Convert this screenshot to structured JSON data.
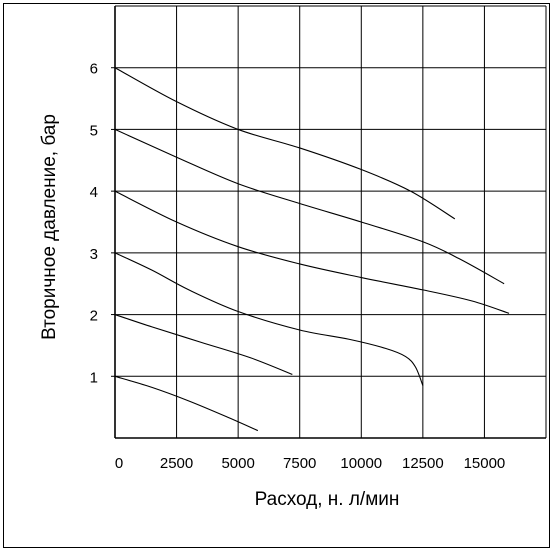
{
  "chart_data": {
    "type": "line",
    "title": "",
    "xlabel": "Расход, н. л/мин",
    "ylabel": "Вторичное давление, бар",
    "xlim": [
      0,
      17500
    ],
    "ylim": [
      0,
      7
    ],
    "x_ticks": [
      "0",
      "2500",
      "5000",
      "7500",
      "10000",
      "12500",
      "15000"
    ],
    "y_ticks": [
      "1",
      "2",
      "3",
      "4",
      "5",
      "6"
    ],
    "grid": true,
    "legend": "none",
    "colors": {
      "line": "#000000",
      "grid": "#000000"
    },
    "series": [
      {
        "points": [
          [
            0,
            1.0
          ],
          [
            1500,
            0.82
          ],
          [
            3000,
            0.6
          ],
          [
            4500,
            0.35
          ],
          [
            5800,
            0.12
          ]
        ]
      },
      {
        "points": [
          [
            0,
            2.0
          ],
          [
            1500,
            1.8
          ],
          [
            3500,
            1.55
          ],
          [
            5500,
            1.3
          ],
          [
            7200,
            1.03
          ]
        ]
      },
      {
        "points": [
          [
            0,
            3.0
          ],
          [
            1500,
            2.72
          ],
          [
            3000,
            2.4
          ],
          [
            5000,
            2.05
          ],
          [
            7500,
            1.75
          ],
          [
            9500,
            1.6
          ],
          [
            11000,
            1.45
          ],
          [
            11800,
            1.32
          ],
          [
            12200,
            1.15
          ],
          [
            12500,
            0.85
          ]
        ]
      },
      {
        "points": [
          [
            0,
            4.0
          ],
          [
            2500,
            3.5
          ],
          [
            5000,
            3.1
          ],
          [
            7500,
            2.82
          ],
          [
            10000,
            2.6
          ],
          [
            12500,
            2.4
          ],
          [
            14500,
            2.22
          ],
          [
            16000,
            2.02
          ]
        ]
      },
      {
        "points": [
          [
            0,
            5.0
          ],
          [
            2500,
            4.55
          ],
          [
            5000,
            4.12
          ],
          [
            7500,
            3.8
          ],
          [
            10000,
            3.5
          ],
          [
            12500,
            3.18
          ],
          [
            14000,
            2.9
          ],
          [
            15800,
            2.5
          ]
        ]
      },
      {
        "points": [
          [
            0,
            6.0
          ],
          [
            2500,
            5.45
          ],
          [
            5000,
            5.0
          ],
          [
            7500,
            4.7
          ],
          [
            10000,
            4.35
          ],
          [
            12000,
            4.0
          ],
          [
            13800,
            3.55
          ]
        ]
      }
    ]
  }
}
